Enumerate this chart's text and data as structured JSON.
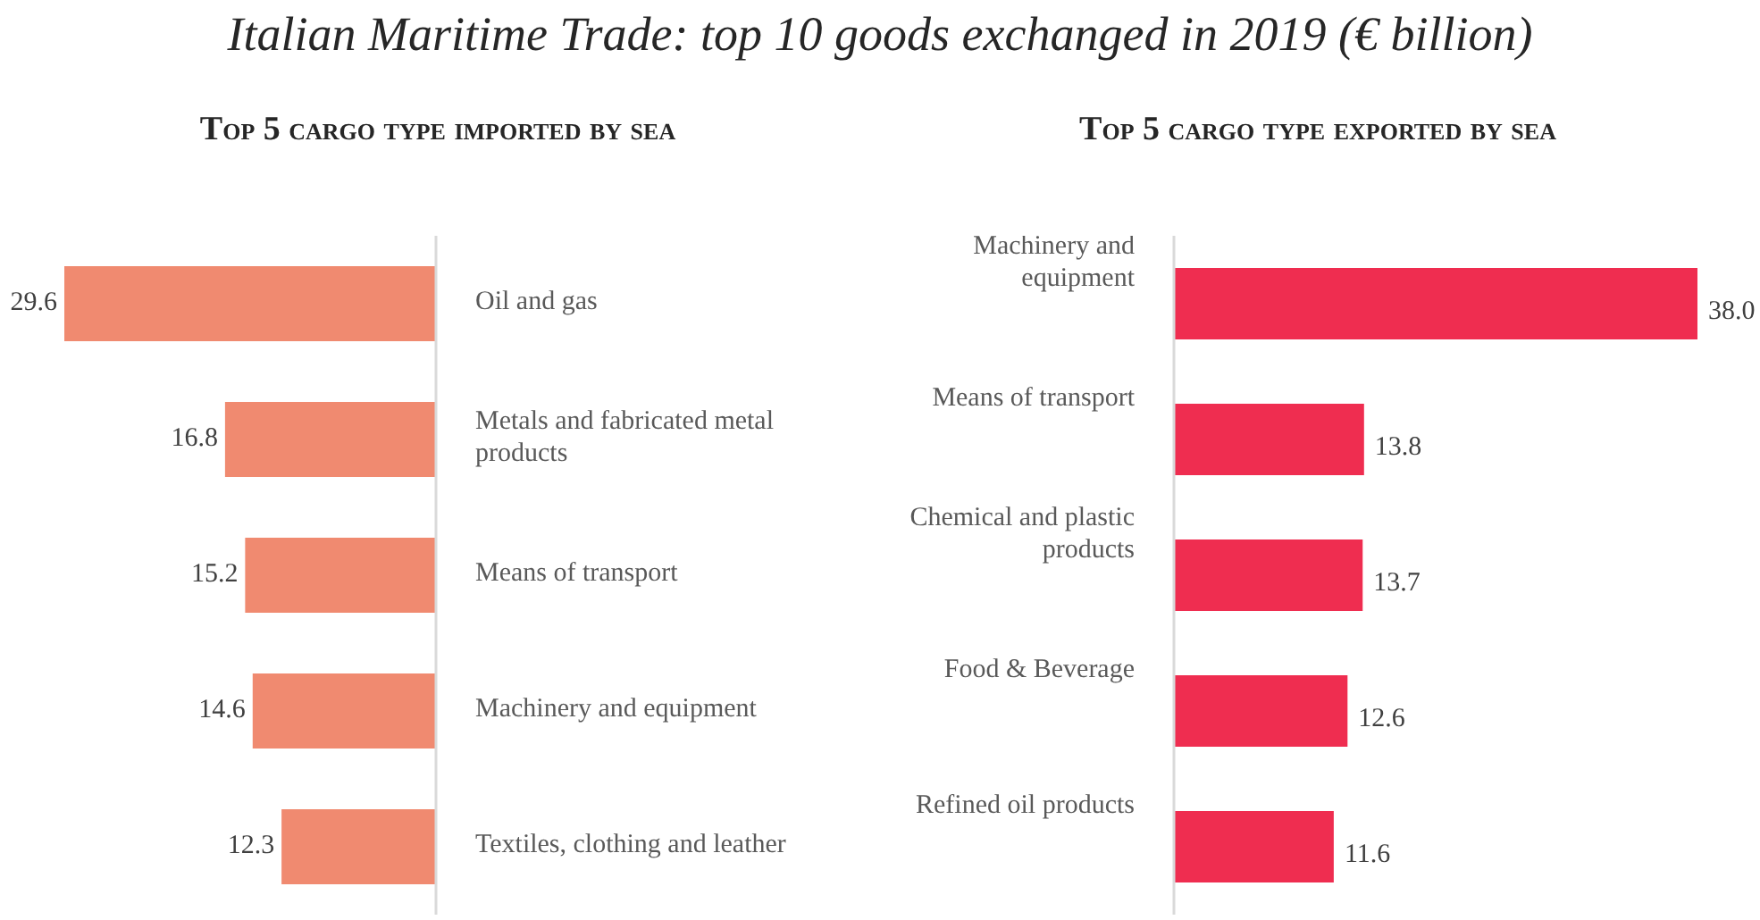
{
  "chart_data": [
    {
      "type": "bar",
      "orientation": "horizontal",
      "title": "Italian Maritime Trade: top 10 goods exchanged in 2019 (€ billion)",
      "subtitle": "Top 5 cargo type imported by sea",
      "categories": [
        "Oil and gas",
        "Metals and fabricated metal products",
        "Means of transport",
        "Machinery and equipment",
        "Textiles, clothing and leather"
      ],
      "values": [
        29.6,
        16.8,
        15.2,
        14.6,
        12.3
      ],
      "value_labels": [
        "29.6",
        "16.8",
        "15.2",
        "14.6",
        "12.3"
      ],
      "color": "#f08a70"
    },
    {
      "type": "bar",
      "orientation": "horizontal",
      "subtitle": "Top 5 cargo type exported by sea",
      "categories": [
        "Machinery and equipment",
        "Means of transport",
        "Chemical and plastic products",
        "Food & Beverage",
        "Refined oil products"
      ],
      "values": [
        38.0,
        13.8,
        13.7,
        12.6,
        11.6
      ],
      "value_labels": [
        "38.0",
        "13.8",
        "13.7",
        "12.6",
        "11.6"
      ],
      "color": "#ef2d50"
    }
  ]
}
